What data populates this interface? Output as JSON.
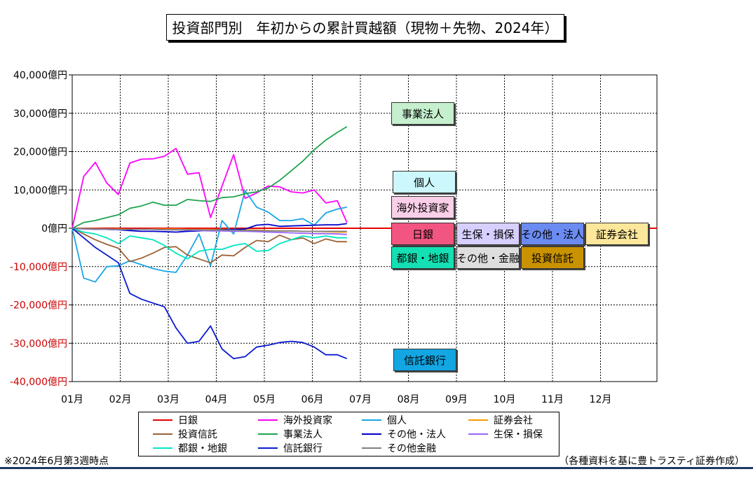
{
  "chart_data": {
    "type": "line",
    "title": "投資部門別　年初からの累計買越額（現物＋先物、2024年）",
    "xlabel": "",
    "ylabel": "",
    "ylim": [
      -40000,
      40000
    ],
    "y_ticks": [
      40000,
      30000,
      20000,
      10000,
      0,
      -10000,
      -20000,
      -30000,
      -40000
    ],
    "y_tick_labels": [
      "40,000億円",
      "30,000億円",
      "20,000億円",
      "10,000億円",
      "0億円",
      "-10,000億円",
      "-20,000億円",
      "-30,000億円",
      "-40,000億円"
    ],
    "x_tick_labels": [
      "01月",
      "02月",
      "03月",
      "04月",
      "05月",
      "06月",
      "07月",
      "08月",
      "09月",
      "10月",
      "11月",
      "12月"
    ],
    "x_unit": "month",
    "xlim": [
      1,
      12.98
    ],
    "grid": true,
    "legend_position": "bottom",
    "x": [
      1,
      1.24,
      1.48,
      1.72,
      1.96,
      2.2,
      2.44,
      2.68,
      2.92,
      3.16,
      3.4,
      3.64,
      3.88,
      4.12,
      4.36,
      4.6,
      4.84,
      5.08,
      5.32,
      5.56,
      5.8,
      6.04,
      6.28,
      6.52,
      6.72
    ],
    "series": [
      {
        "name": "日銀",
        "color": "#e60000",
        "values": [
          0,
          0,
          0,
          0,
          0,
          0,
          0,
          0,
          0,
          0,
          0,
          0,
          0,
          0,
          0,
          0,
          0,
          0,
          0,
          0,
          0,
          0,
          0,
          0,
          0
        ]
      },
      {
        "name": "海外投資家",
        "color": "#ff00ff",
        "values": [
          0,
          13500,
          17200,
          11800,
          8800,
          17000,
          18000,
          18100,
          18800,
          20800,
          14100,
          14500,
          2800,
          11000,
          19200,
          7800,
          9200,
          11000,
          10800,
          9500,
          9200,
          10000,
          6600,
          7200,
          1500
        ]
      },
      {
        "name": "個人",
        "color": "#1aa6e6",
        "values": [
          0,
          -13000,
          -14000,
          -10000,
          -9800,
          -8500,
          -9500,
          -10500,
          -11200,
          -11500,
          -7000,
          -1500,
          -9800,
          2000,
          -1500,
          9800,
          5500,
          4200,
          2000,
          2000,
          2500,
          800,
          4000,
          5000,
          5500
        ]
      },
      {
        "name": "証券会社",
        "color": "#ff9900",
        "values": [
          0,
          0,
          -100,
          -200,
          -200,
          -300,
          -300,
          -200,
          -200,
          -200,
          -300,
          -300,
          -300,
          -300,
          -300,
          -400,
          -500,
          -600,
          -700,
          -700,
          -800,
          -800,
          -900,
          -1000,
          -1000
        ]
      },
      {
        "name": "投資信託",
        "color": "#9b6236",
        "values": [
          0,
          -1500,
          -3000,
          -4200,
          -5200,
          -8700,
          -7800,
          -6500,
          -5000,
          -4800,
          -7000,
          -8000,
          -9000,
          -7000,
          -7200,
          -5000,
          -3200,
          -3500,
          -1800,
          -3000,
          -2500,
          -4000,
          -2800,
          -3500,
          -3500
        ]
      },
      {
        "name": "事業法人",
        "color": "#1fa44e",
        "values": [
          0,
          1500,
          2000,
          2800,
          3500,
          5200,
          5800,
          6800,
          6000,
          6000,
          7500,
          7200,
          7000,
          8000,
          8200,
          9000,
          9500,
          10500,
          12500,
          15000,
          17500,
          20500,
          23000,
          25000,
          26500
        ]
      },
      {
        "name": "その他・法人",
        "color": "#0000cc",
        "values": [
          0,
          -100,
          -200,
          -300,
          -400,
          -600,
          -800,
          -800,
          -900,
          -1000,
          -800,
          -700,
          -500,
          -400,
          -300,
          -200,
          800,
          1000,
          500,
          600,
          700,
          800,
          900,
          900,
          1200
        ]
      },
      {
        "name": "生保・損保",
        "color": "#9966ff",
        "values": [
          0,
          -200,
          -300,
          -300,
          -400,
          -300,
          -300,
          -300,
          -400,
          -400,
          -500,
          -600,
          -700,
          -700,
          -800,
          -800,
          -900,
          -1000,
          -1100,
          -1200,
          -1300,
          -1400,
          -1400,
          -1500,
          -1600
        ]
      },
      {
        "name": "都銀・地銀",
        "color": "#00e6c3",
        "values": [
          0,
          -1000,
          -1500,
          -2500,
          -4000,
          -2000,
          -2500,
          -3000,
          -4500,
          -6500,
          -8000,
          -6000,
          -5500,
          -5500,
          -4500,
          -4000,
          -6000,
          -5800,
          -4000,
          -3000,
          -2000,
          -2500,
          -2000,
          -2500,
          -2500
        ]
      },
      {
        "name": "信託銀行",
        "color": "#0a1ad1",
        "values": [
          0,
          -2500,
          -5000,
          -7000,
          -9000,
          -17000,
          -18500,
          -19500,
          -20500,
          -26000,
          -30000,
          -29500,
          -25500,
          -31500,
          -34000,
          -33500,
          -31000,
          -30500,
          -29800,
          -29500,
          -29800,
          -31000,
          -33000,
          -33000,
          -34000
        ]
      },
      {
        "name": "その他金融",
        "color": "#808080",
        "values": [
          0,
          -100,
          -200,
          -200,
          -300,
          -300,
          -300,
          -300,
          -400,
          -400,
          -400,
          -400,
          -500,
          -500,
          -500,
          -600,
          -600,
          -700,
          -700,
          -700,
          -800,
          -800,
          -800,
          -800,
          -800
        ]
      }
    ],
    "annotations": [
      {
        "label": "事業法人",
        "bg": "#c6efce"
      },
      {
        "label": "個人",
        "bg": "#ccf7fc"
      },
      {
        "label": "海外投資家",
        "bg": "#fccfe8"
      },
      {
        "label": "日銀",
        "bg": "#f25580"
      },
      {
        "label": "都銀・地銀",
        "bg": "#14e0b3"
      },
      {
        "label": "生保・損保",
        "bg": "#d6cfff"
      },
      {
        "label": "その他・金融",
        "bg": "#dedede"
      },
      {
        "label": "その他・法人",
        "bg": "#6b8bf2"
      },
      {
        "label": "投資信託",
        "bg": "#c99200"
      },
      {
        "label": "証券会社",
        "bg": "#fde79b"
      },
      {
        "label": "信託銀行",
        "bg": "#12a6e3"
      }
    ]
  },
  "legend": [
    {
      "label": "日銀",
      "color": "#e60000"
    },
    {
      "label": "海外投資家",
      "color": "#ff00ff"
    },
    {
      "label": "個人",
      "color": "#1aa6e6"
    },
    {
      "label": "証券会社",
      "color": "#ff9900"
    },
    {
      "label": "投資信託",
      "color": "#9b6236"
    },
    {
      "label": "事業法人",
      "color": "#1fa44e"
    },
    {
      "label": "その他・法人",
      "color": "#0000cc"
    },
    {
      "label": "生保・損保",
      "color": "#9966ff"
    },
    {
      "label": "都銀・地銀",
      "color": "#00e6c3"
    },
    {
      "label": "信託銀行",
      "color": "#0a1ad1"
    },
    {
      "label": "その他金融",
      "color": "#808080"
    }
  ],
  "footnote": "※2024年6月第3週時点",
  "source": "（各種資料を基に豊トラスティ証券作成）"
}
